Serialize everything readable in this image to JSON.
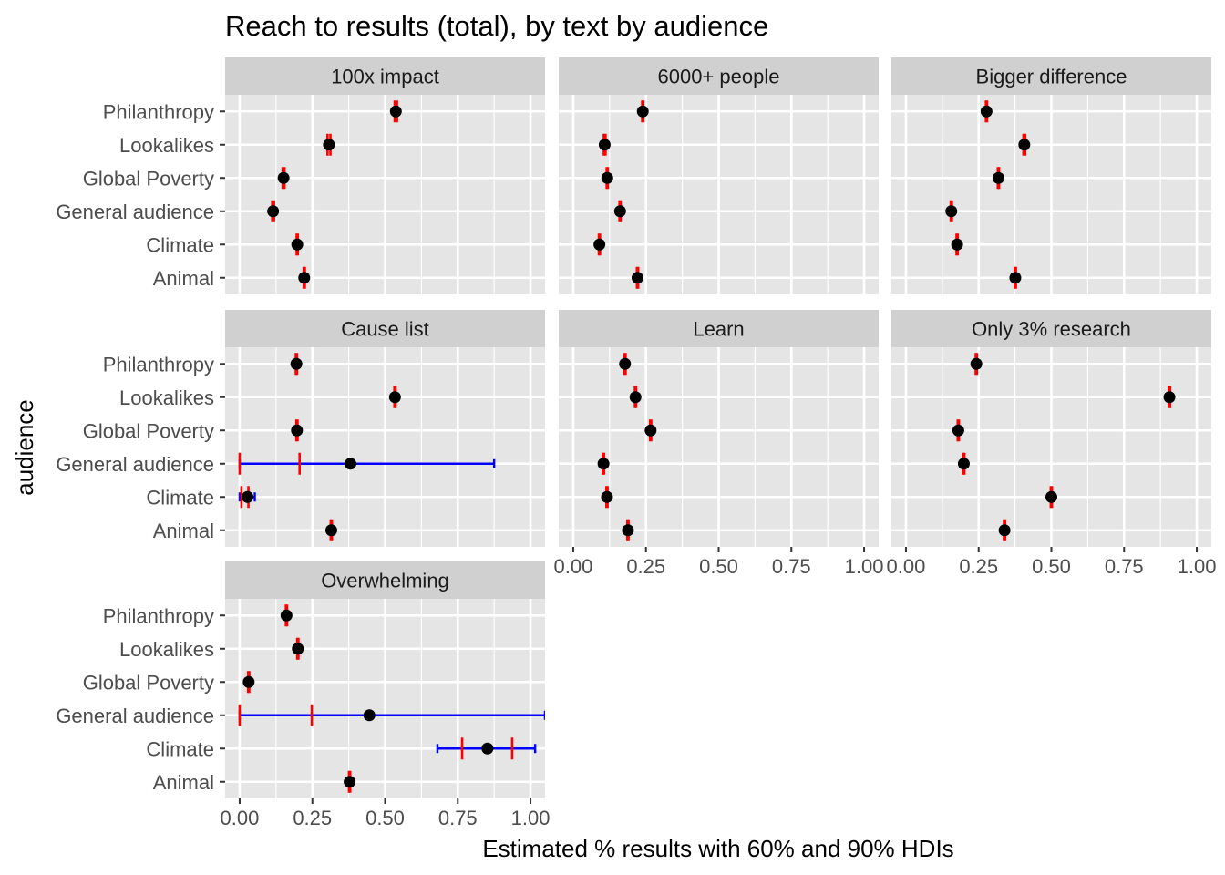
{
  "chart_data": {
    "type": "scatter",
    "title": "Reach to results (total), by text by audience",
    "xlabel": "Estimated % results with 60% and 90% HDIs",
    "ylabel": "audience",
    "xlim": [
      -0.05,
      1.05
    ],
    "xticks": [
      0,
      0.25,
      0.5,
      0.75,
      1
    ],
    "xtick_labels": [
      "0.00",
      "0.25",
      "0.50",
      "0.75",
      "1.00"
    ],
    "audiences": [
      "Philanthropy",
      "Lookalikes",
      "Global Poverty",
      "General audience",
      "Climate",
      "Animal"
    ],
    "colors": {
      "panel_bg": "#e5e5e5",
      "strip_bg": "#d0d0d0",
      "grid": "#ffffff",
      "point": "#000000",
      "hdi60": "#ff0000",
      "hdi90": "#0000ff"
    },
    "facets": [
      {
        "label": "100x impact",
        "points": [
          {
            "audience": "Philanthropy",
            "mean": 0.537,
            "hdi60": [
              0.533,
              0.541
            ],
            "hdi90": [
              0.53,
              0.544
            ]
          },
          {
            "audience": "Lookalikes",
            "mean": 0.307,
            "hdi60": [
              0.302,
              0.312
            ],
            "hdi90": [
              0.298,
              0.316
            ]
          },
          {
            "audience": "Global Poverty",
            "mean": 0.151,
            "hdi60": [
              0.148,
              0.154
            ],
            "hdi90": [
              0.145,
              0.157
            ]
          },
          {
            "audience": "General audience",
            "mean": 0.115,
            "hdi60": [
              0.112,
              0.118
            ],
            "hdi90": [
              0.11,
              0.12
            ]
          },
          {
            "audience": "Climate",
            "mean": 0.198,
            "hdi60": [
              0.196,
              0.2
            ],
            "hdi90": [
              0.194,
              0.202
            ]
          },
          {
            "audience": "Animal",
            "mean": 0.222,
            "hdi60": [
              0.22,
              0.224
            ],
            "hdi90": [
              0.218,
              0.226
            ]
          }
        ]
      },
      {
        "label": "6000+ people",
        "points": [
          {
            "audience": "Philanthropy",
            "mean": 0.239,
            "hdi60": [
              0.237,
              0.241
            ],
            "hdi90": [
              0.235,
              0.243
            ]
          },
          {
            "audience": "Lookalikes",
            "mean": 0.108,
            "hdi60": [
              0.105,
              0.111
            ],
            "hdi90": [
              0.103,
              0.113
            ]
          },
          {
            "audience": "Global Poverty",
            "mean": 0.117,
            "hdi60": [
              0.115,
              0.119
            ],
            "hdi90": [
              0.113,
              0.121
            ]
          },
          {
            "audience": "General audience",
            "mean": 0.161,
            "hdi60": [
              0.159,
              0.163
            ],
            "hdi90": [
              0.157,
              0.165
            ]
          },
          {
            "audience": "Climate",
            "mean": 0.09,
            "hdi60": [
              0.088,
              0.092
            ],
            "hdi90": [
              0.086,
              0.094
            ]
          },
          {
            "audience": "Animal",
            "mean": 0.221,
            "hdi60": [
              0.219,
              0.223
            ],
            "hdi90": [
              0.217,
              0.225
            ]
          }
        ]
      },
      {
        "label": "Bigger difference",
        "points": [
          {
            "audience": "Philanthropy",
            "mean": 0.277,
            "hdi60": [
              0.275,
              0.279
            ],
            "hdi90": [
              0.273,
              0.281
            ]
          },
          {
            "audience": "Lookalikes",
            "mean": 0.407,
            "hdi60": [
              0.404,
              0.41
            ],
            "hdi90": [
              0.402,
              0.412
            ]
          },
          {
            "audience": "Global Poverty",
            "mean": 0.318,
            "hdi60": [
              0.316,
              0.32
            ],
            "hdi90": [
              0.314,
              0.322
            ]
          },
          {
            "audience": "General audience",
            "mean": 0.156,
            "hdi60": [
              0.154,
              0.158
            ],
            "hdi90": [
              0.152,
              0.16
            ]
          },
          {
            "audience": "Climate",
            "mean": 0.176,
            "hdi60": [
              0.174,
              0.178
            ],
            "hdi90": [
              0.172,
              0.18
            ]
          },
          {
            "audience": "Animal",
            "mean": 0.376,
            "hdi60": [
              0.374,
              0.378
            ],
            "hdi90": [
              0.372,
              0.38
            ]
          }
        ]
      },
      {
        "label": "Cause list",
        "points": [
          {
            "audience": "Philanthropy",
            "mean": 0.195,
            "hdi60": [
              0.193,
              0.197
            ],
            "hdi90": [
              0.191,
              0.199
            ]
          },
          {
            "audience": "Lookalikes",
            "mean": 0.534,
            "hdi60": [
              0.532,
              0.536
            ],
            "hdi90": [
              0.53,
              0.538
            ]
          },
          {
            "audience": "Global Poverty",
            "mean": 0.197,
            "hdi60": [
              0.195,
              0.199
            ],
            "hdi90": [
              0.193,
              0.201
            ]
          },
          {
            "audience": "General audience",
            "mean": 0.381,
            "hdi60": [
              0.0,
              0.206
            ],
            "hdi90": [
              0.0,
              0.875
            ]
          },
          {
            "audience": "Climate",
            "mean": 0.027,
            "hdi60": [
              0.006,
              0.03
            ],
            "hdi90": [
              0.0,
              0.052
            ]
          },
          {
            "audience": "Animal",
            "mean": 0.315,
            "hdi60": [
              0.313,
              0.317
            ],
            "hdi90": [
              0.311,
              0.319
            ]
          }
        ]
      },
      {
        "label": "Learn",
        "points": [
          {
            "audience": "Philanthropy",
            "mean": 0.178,
            "hdi60": [
              0.176,
              0.18
            ],
            "hdi90": [
              0.174,
              0.182
            ]
          },
          {
            "audience": "Lookalikes",
            "mean": 0.214,
            "hdi60": [
              0.212,
              0.216
            ],
            "hdi90": [
              0.21,
              0.218
            ]
          },
          {
            "audience": "Global Poverty",
            "mean": 0.266,
            "hdi60": [
              0.264,
              0.268
            ],
            "hdi90": [
              0.262,
              0.27
            ]
          },
          {
            "audience": "General audience",
            "mean": 0.104,
            "hdi60": [
              0.102,
              0.106
            ],
            "hdi90": [
              0.1,
              0.108
            ]
          },
          {
            "audience": "Climate",
            "mean": 0.116,
            "hdi60": [
              0.114,
              0.118
            ],
            "hdi90": [
              0.112,
              0.12
            ]
          },
          {
            "audience": "Animal",
            "mean": 0.188,
            "hdi60": [
              0.186,
              0.19
            ],
            "hdi90": [
              0.184,
              0.192
            ]
          }
        ]
      },
      {
        "label": "Only 3% research",
        "points": [
          {
            "audience": "Philanthropy",
            "mean": 0.242,
            "hdi60": [
              0.24,
              0.244
            ],
            "hdi90": [
              0.238,
              0.246
            ]
          },
          {
            "audience": "Lookalikes",
            "mean": 0.906,
            "hdi60": [
              0.904,
              0.908
            ],
            "hdi90": [
              0.902,
              0.91
            ]
          },
          {
            "audience": "Global Poverty",
            "mean": 0.18,
            "hdi60": [
              0.178,
              0.182
            ],
            "hdi90": [
              0.176,
              0.184
            ]
          },
          {
            "audience": "General audience",
            "mean": 0.199,
            "hdi60": [
              0.197,
              0.201
            ],
            "hdi90": [
              0.195,
              0.203
            ]
          },
          {
            "audience": "Climate",
            "mean": 0.5,
            "hdi60": [
              0.498,
              0.502
            ],
            "hdi90": [
              0.496,
              0.504
            ]
          },
          {
            "audience": "Animal",
            "mean": 0.339,
            "hdi60": [
              0.337,
              0.341
            ],
            "hdi90": [
              0.335,
              0.343
            ]
          }
        ]
      },
      {
        "label": "Overwhelming",
        "points": [
          {
            "audience": "Philanthropy",
            "mean": 0.161,
            "hdi60": [
              0.159,
              0.163
            ],
            "hdi90": [
              0.157,
              0.165
            ]
          },
          {
            "audience": "Lookalikes",
            "mean": 0.2,
            "hdi60": [
              0.198,
              0.202
            ],
            "hdi90": [
              0.196,
              0.204
            ]
          },
          {
            "audience": "Global Poverty",
            "mean": 0.031,
            "hdi60": [
              0.029,
              0.033
            ],
            "hdi90": [
              0.027,
              0.035
            ]
          },
          {
            "audience": "General audience",
            "mean": 0.446,
            "hdi60": [
              0.0,
              0.248
            ],
            "hdi90": [
              0.0,
              1.05
            ]
          },
          {
            "audience": "Climate",
            "mean": 0.852,
            "hdi60": [
              0.765,
              0.937
            ],
            "hdi90": [
              0.68,
              1.016
            ]
          },
          {
            "audience": "Animal",
            "mean": 0.378,
            "hdi60": [
              0.376,
              0.38
            ],
            "hdi90": [
              0.374,
              0.382
            ]
          }
        ]
      }
    ]
  }
}
